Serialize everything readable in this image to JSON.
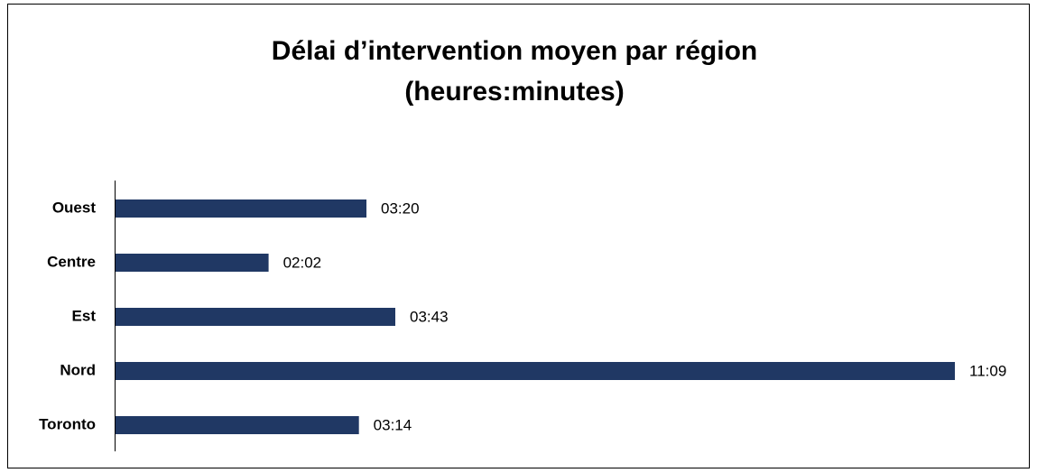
{
  "chart_data": {
    "type": "bar",
    "orientation": "horizontal",
    "title": [
      "Délai d’intervention moyen par région",
      "(heures:minutes)"
    ],
    "categories": [
      "Ouest",
      "Centre",
      "Est",
      "Nord",
      "Toronto"
    ],
    "values": [
      200,
      122,
      223,
      669,
      194
    ],
    "value_labels": [
      "03:20",
      "02:02",
      "03:43",
      "11:09",
      "03:14"
    ],
    "color": "#203864"
  }
}
